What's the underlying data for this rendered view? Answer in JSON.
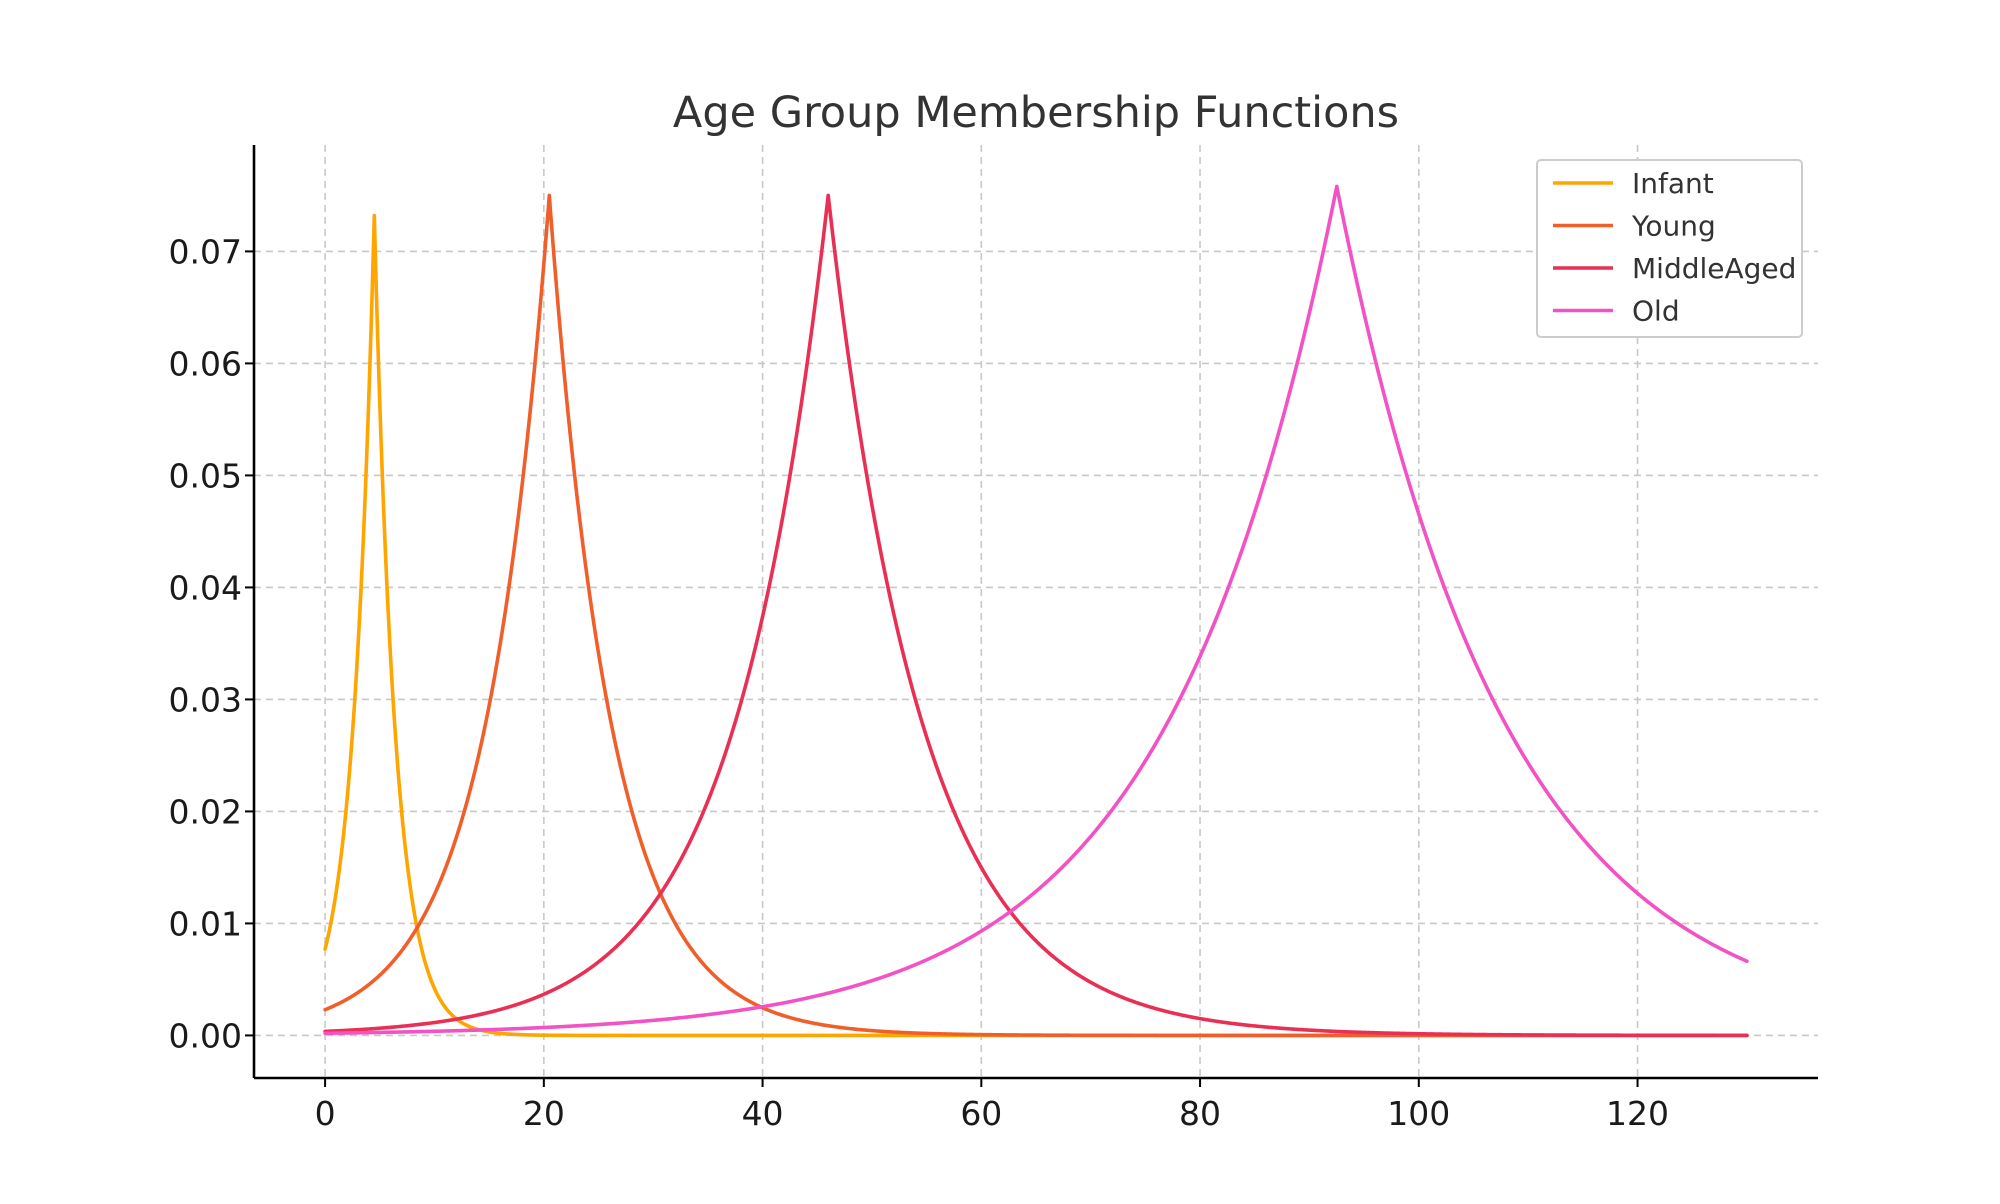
{
  "chart_data": {
    "type": "line",
    "title": "Age Group Membership Functions",
    "xlabel": "",
    "ylabel": "",
    "xlim": [
      -6.5,
      136.5
    ],
    "ylim": [
      -0.0038,
      0.0795
    ],
    "xticks": [
      0,
      20,
      40,
      60,
      80,
      100,
      120
    ],
    "xtick_labels": [
      "0",
      "20",
      "40",
      "60",
      "80",
      "100",
      "120"
    ],
    "yticks": [
      0.0,
      0.01,
      0.02,
      0.03,
      0.04,
      0.05,
      0.06,
      0.07
    ],
    "ytick_labels": [
      "0.00",
      "0.01",
      "0.02",
      "0.03",
      "0.04",
      "0.05",
      "0.06",
      "0.07"
    ],
    "grid": true,
    "legend_position": "top-right",
    "x_domain": [
      0,
      130
    ],
    "series": [
      {
        "name": "Infant",
        "color": "#ffa500",
        "peak_x": 4.5,
        "peak_y": 0.0732,
        "rate_left": 0.5,
        "rate_right": 0.52
      },
      {
        "name": "Young",
        "color": "#f05f2a",
        "peak_x": 20.5,
        "peak_y": 0.075,
        "rate_left": 0.17,
        "rate_right": 0.175
      },
      {
        "name": "MiddleAged",
        "color": "#ea2f55",
        "peak_x": 46,
        "peak_y": 0.075,
        "rate_left": 0.116,
        "rate_right": 0.115
      },
      {
        "name": "Old",
        "color": "#f252c4",
        "peak_x": 92.5,
        "peak_y": 0.0758,
        "rate_left": 0.0645,
        "rate_right": 0.065
      }
    ]
  }
}
